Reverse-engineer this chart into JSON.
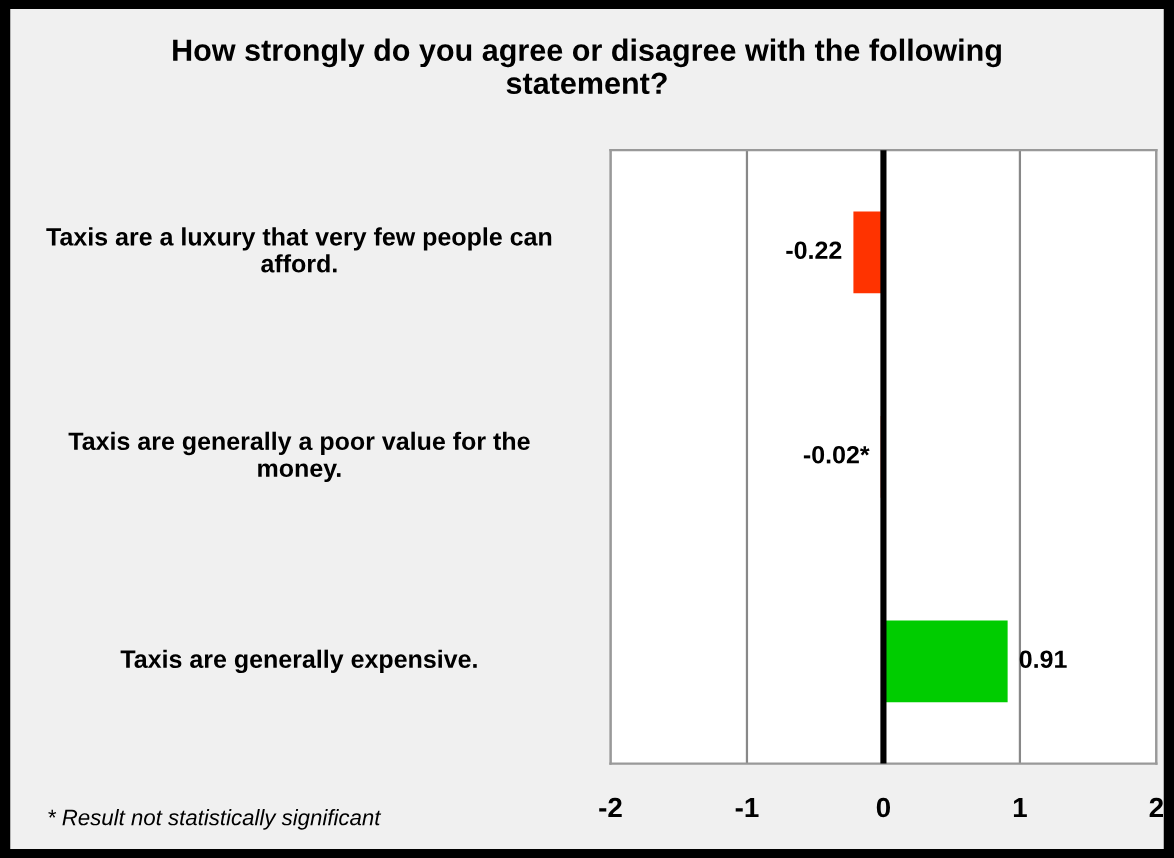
{
  "chart_data": {
    "type": "bar",
    "orientation": "horizontal",
    "title": "How strongly do you agree or disagree with the following statement?",
    "categories": [
      "Taxis are a luxury that very few people can afford.",
      "Taxis are generally a poor value for the money.",
      "Taxis are generally expensive."
    ],
    "values": [
      -0.22,
      -0.02,
      0.91
    ],
    "colors": [
      "#ff3300",
      "#ff3300",
      "#00cc00"
    ],
    "value_labels": [
      "-0.22",
      "-0.02*",
      "0.91"
    ],
    "xlim": [
      -2,
      2
    ],
    "xticks": [
      -2,
      -1,
      0,
      1,
      2
    ],
    "grid": "x",
    "ref_lines": [
      {
        "axis": "x",
        "value": 0,
        "color": "#000000"
      }
    ],
    "annotations": [
      "* Result not statistically significant"
    ]
  }
}
